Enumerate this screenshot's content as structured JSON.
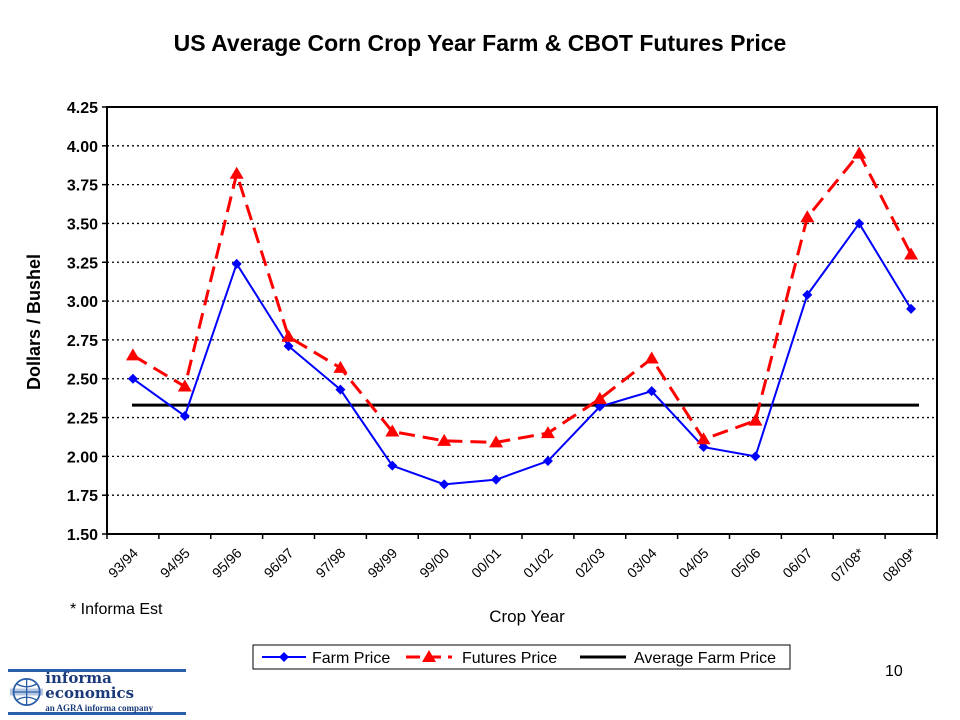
{
  "chart_data": {
    "type": "line",
    "title": "US Average Corn Crop Year Farm & CBOT Futures Price",
    "xlabel": "Crop Year",
    "ylabel": "Dollars / Bushel",
    "categories": [
      "93/94",
      "94/95",
      "95/96",
      "96/97",
      "97/98",
      "98/99",
      "99/00",
      "00/01",
      "01/02",
      "02/03",
      "03/04",
      "04/05",
      "05/06",
      "06/07",
      "07/08*",
      "08/09*"
    ],
    "ylim": [
      1.5,
      4.25
    ],
    "yticks": [
      "1.50",
      "1.75",
      "2.00",
      "2.25",
      "2.50",
      "2.75",
      "3.00",
      "3.25",
      "3.50",
      "3.75",
      "4.00",
      "4.25"
    ],
    "grid": "horizontal dotted",
    "legend_position": "bottom",
    "series": [
      {
        "name": "Farm Price",
        "color": "#0000ff",
        "marker": "diamond",
        "line": "solid",
        "values": [
          2.5,
          2.26,
          3.24,
          2.71,
          2.43,
          1.94,
          1.82,
          1.85,
          1.97,
          2.32,
          2.42,
          2.06,
          2.0,
          3.04,
          3.5,
          2.95
        ]
      },
      {
        "name": "Futures Price",
        "color": "#ff0000",
        "marker": "triangle",
        "line": "dashed",
        "values": [
          2.65,
          2.45,
          3.82,
          2.77,
          2.57,
          2.16,
          2.1,
          2.09,
          2.15,
          2.37,
          2.63,
          2.11,
          2.23,
          3.54,
          3.95,
          3.3
        ]
      },
      {
        "name": "Average Farm Price",
        "color": "#000000",
        "marker": "none",
        "line": "solid",
        "values": [
          2.33,
          2.33,
          2.33,
          2.33,
          2.33,
          2.33,
          2.33,
          2.33,
          2.33,
          2.33,
          2.33,
          2.33,
          2.33,
          2.33,
          2.33,
          2.33
        ]
      }
    ]
  },
  "note": "* Informa Est",
  "page_number": "10",
  "logo": {
    "name": "informa economics",
    "tagline": "an AGRA informa company"
  }
}
